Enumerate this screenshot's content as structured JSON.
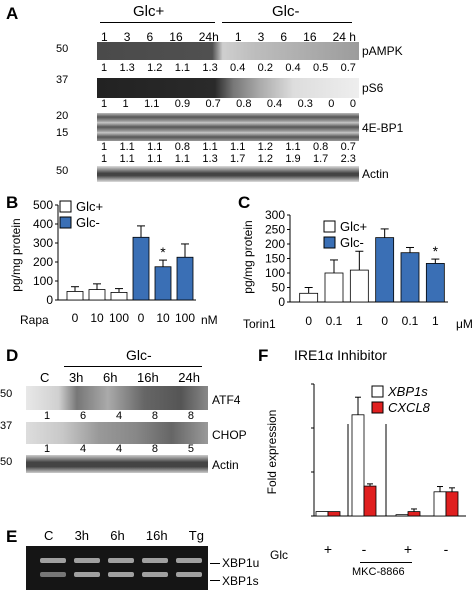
{
  "panelA": {
    "label": "A",
    "group_glc_plus": "Glc+",
    "group_glc_minus": "Glc-",
    "timepoints": [
      "1",
      "3",
      "6",
      "16",
      "24h",
      "1",
      "3",
      "6",
      "16",
      "24 h"
    ],
    "mw": [
      "50",
      "37",
      "20",
      "15",
      "50"
    ],
    "bands": [
      "pAMPK",
      "pS6",
      "4E-BP1",
      "Actin"
    ],
    "pAMPK_vals": [
      "1",
      "1.3",
      "1.2",
      "1.1",
      "1.3",
      "0.4",
      "0.2",
      "0.4",
      "0.5",
      "0.7"
    ],
    "pS6_vals": [
      "1",
      "1",
      "1.1",
      "0.9",
      "0.7",
      "0.8",
      "0.4",
      "0.3",
      "0",
      "0"
    ],
    "bp1_vals_a": [
      "1",
      "1.1",
      "1.1",
      "0.8",
      "1.1",
      "1.1",
      "1.2",
      "1.1",
      "0.8",
      "0.7"
    ],
    "bp1_vals_b": [
      "1",
      "1.1",
      "1.1",
      "1.1",
      "1.3",
      "1.7",
      "1.2",
      "1.9",
      "1.7",
      "2.3"
    ]
  },
  "panelB": {
    "label": "B",
    "ylabel": "pg/mg protein",
    "legend_plus": "Glc+",
    "legend_minus": "Glc-",
    "xrow_label": "Rapa",
    "xunit": "nM"
  },
  "panelC": {
    "label": "C",
    "ylabel": "pg/mg protein",
    "legend_plus": "Glc+",
    "legend_minus": "Glc-",
    "xrow_label": "Torin1",
    "xunit": "μM"
  },
  "panelD": {
    "label": "D",
    "group": "Glc-",
    "lanes": [
      "C",
      "3h",
      "6h",
      "16h",
      "24h"
    ],
    "mw": [
      "50",
      "37",
      "50"
    ],
    "bands": [
      "ATF4",
      "CHOP",
      "Actin"
    ],
    "atf4_vals": [
      "1",
      "6",
      "4",
      "8",
      "8"
    ],
    "chop_vals": [
      "1",
      "4",
      "4",
      "8",
      "5"
    ]
  },
  "panelE": {
    "label": "E",
    "lanes": [
      "C",
      "3h",
      "6h",
      "16h",
      "Tg"
    ],
    "bands": [
      "XBP1u",
      "XBP1s"
    ]
  },
  "panelF": {
    "label": "F",
    "title": "IRE1α Inhibitor",
    "ylabel": "Fold expression",
    "legend_xbp1s": "XBP1s",
    "legend_cxcl8": "CXCL8",
    "glc_label": "Glc",
    "signs": [
      "+",
      "-",
      "+",
      "-"
    ],
    "drug": "MKC-8866"
  },
  "colors": {
    "blue": "#3a6fb5",
    "red": "#e02020"
  },
  "chart_data": [
    {
      "type": "bar",
      "title": "",
      "ylabel": "pg/mg protein",
      "ylim": [
        0,
        500
      ],
      "yticks": [
        "0",
        "100",
        "200",
        "300",
        "400",
        "500"
      ],
      "categories": [
        "0",
        "10",
        "100",
        "0",
        "10",
        "100"
      ],
      "series": [
        {
          "name": "Glc+",
          "values": [
            45,
            55,
            40,
            null,
            null,
            null
          ],
          "errors": [
            25,
            30,
            20,
            null,
            null,
            null
          ]
        },
        {
          "name": "Glc-",
          "values": [
            null,
            null,
            null,
            330,
            175,
            225
          ],
          "errors": [
            null,
            null,
            null,
            60,
            35,
            70
          ]
        }
      ],
      "annotations": [
        "*"
      ]
    },
    {
      "type": "bar",
      "title": "",
      "ylabel": "pg/mg protein",
      "ylim": [
        0,
        300
      ],
      "yticks": [
        "0",
        "50",
        "100",
        "150",
        "200",
        "250",
        "300"
      ],
      "categories": [
        "0",
        "0.1",
        "1",
        "0",
        "0.1",
        "1"
      ],
      "series": [
        {
          "name": "Glc+",
          "values": [
            30,
            100,
            110,
            null,
            null,
            null
          ],
          "errors": [
            20,
            45,
            65,
            null,
            null,
            null
          ]
        },
        {
          "name": "Glc-",
          "values": [
            null,
            null,
            null,
            222,
            170,
            133
          ],
          "errors": [
            null,
            null,
            null,
            30,
            18,
            15
          ]
        }
      ],
      "annotations": [
        "*"
      ]
    },
    {
      "type": "bar",
      "title": "IRE1α Inhibitor",
      "ylabel": "Fold expression",
      "ylim": [
        0,
        30
      ],
      "yticks": [
        "0",
        "10",
        "20",
        "30"
      ],
      "categories": [
        "Glc+",
        "Glc-",
        "Glc+ MKC-8866",
        "Glc- MKC-8866"
      ],
      "series": [
        {
          "name": "XBP1s",
          "values": [
            1,
            23,
            0.3,
            5.5
          ],
          "errors": [
            0,
            4,
            0,
            1.2
          ]
        },
        {
          "name": "CXCL8",
          "values": [
            1,
            6.8,
            1,
            5.5
          ],
          "errors": [
            0,
            0.5,
            0.6,
            0.9
          ]
        }
      ]
    }
  ]
}
